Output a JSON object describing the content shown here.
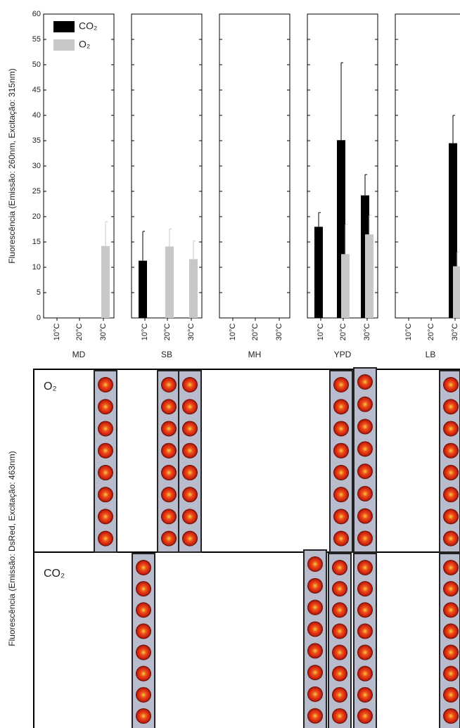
{
  "chart_data": {
    "type": "bar",
    "ylabel": "Fluorescência (Emissão: 260nm, Excitação: 315nm)",
    "ylim": [
      0,
      60
    ],
    "yticks": [
      0,
      5,
      10,
      15,
      20,
      25,
      30,
      35,
      40,
      45,
      50,
      55,
      60
    ],
    "categories": [
      "10°C",
      "20°C",
      "30°C"
    ],
    "series": [
      {
        "name": "CO₂",
        "color": "#000000"
      },
      {
        "name": "O₂",
        "color": "#c8c8c8"
      }
    ],
    "panels": [
      {
        "title": "MD",
        "values": [
          [
            null,
            null,
            null
          ],
          [
            null,
            null,
            14.2
          ]
        ],
        "errors": [
          [
            null,
            null,
            null
          ],
          [
            null,
            null,
            4.8
          ]
        ]
      },
      {
        "title": "SB",
        "values": [
          [
            11.3,
            null,
            null
          ],
          [
            null,
            14.1,
            11.6
          ]
        ],
        "errors": [
          [
            5.8,
            null,
            null
          ],
          [
            null,
            3.5,
            3.6
          ]
        ]
      },
      {
        "title": "MH",
        "values": [
          [
            null,
            null,
            null
          ],
          [
            null,
            null,
            null
          ]
        ],
        "errors": [
          [
            null,
            null,
            null
          ],
          [
            null,
            null,
            null
          ]
        ]
      },
      {
        "title": "YPD",
        "values": [
          [
            18,
            35.1,
            24.2
          ],
          [
            null,
            12.6,
            16.5
          ]
        ],
        "errors": [
          [
            2.8,
            15.3,
            4.1
          ],
          [
            null,
            5.9,
            3.8
          ]
        ]
      },
      {
        "title": "LB",
        "values": [
          [
            null,
            null,
            34.5
          ],
          [
            null,
            null,
            10.2
          ]
        ],
        "errors": [
          [
            null,
            null,
            5.5
          ],
          [
            null,
            null,
            2.8
          ]
        ]
      }
    ]
  },
  "images": {
    "ylabel": "Fluorescência (Emissão: DsRed, Excitação: 463nm)",
    "rows": [
      "O₂",
      "CO₂"
    ]
  }
}
